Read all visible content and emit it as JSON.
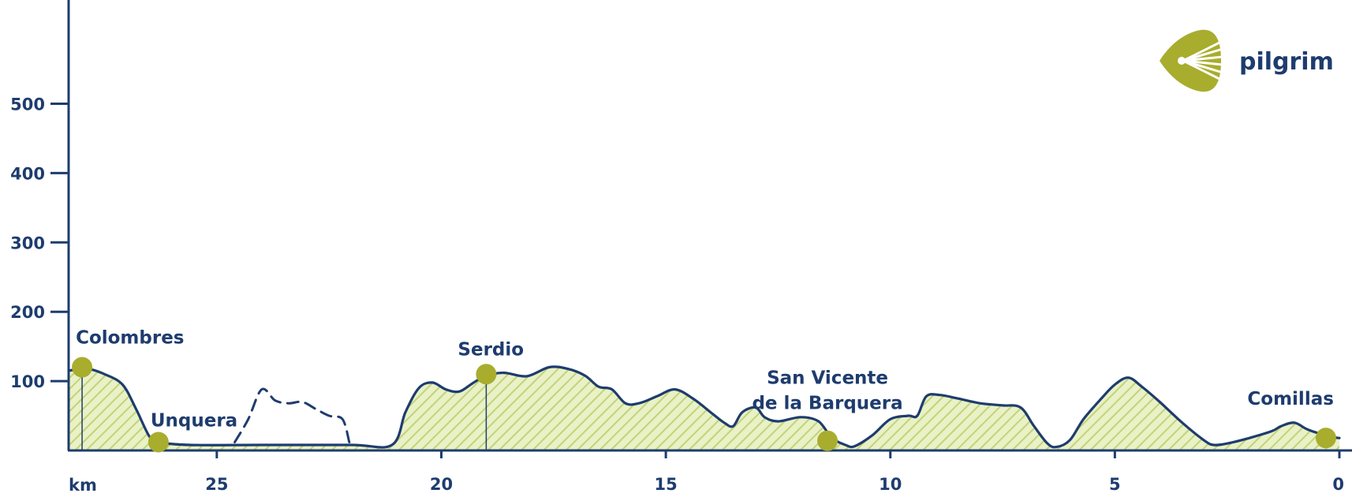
{
  "brand": {
    "name": "pilgrim",
    "accent": "#a8ad2e",
    "primary": "#1e3c6e",
    "fill": "#dbe7a6"
  },
  "chart_data": {
    "type": "area",
    "title": "",
    "xlabel": "km",
    "ylabel": "",
    "x_reversed": true,
    "xlim": [
      0,
      28.3
    ],
    "ylim": [
      0,
      620
    ],
    "x_ticks": [
      25,
      20,
      15,
      10,
      5,
      0
    ],
    "y_ticks": [
      100,
      200,
      300,
      400,
      500
    ],
    "grid": false,
    "series": [
      {
        "kind": "main",
        "style": "solid",
        "points": [
          [
            28.3,
            115
          ],
          [
            27.9,
            118
          ],
          [
            27.5,
            110
          ],
          [
            27.1,
            95
          ],
          [
            26.8,
            60
          ],
          [
            26.5,
            20
          ],
          [
            26.3,
            12
          ],
          [
            25.6,
            8
          ],
          [
            24.0,
            8
          ],
          [
            22.0,
            8
          ],
          [
            21.1,
            8
          ],
          [
            20.8,
            55
          ],
          [
            20.5,
            90
          ],
          [
            20.2,
            98
          ],
          [
            19.9,
            88
          ],
          [
            19.6,
            85
          ],
          [
            19.3,
            97
          ],
          [
            19.0,
            108
          ],
          [
            18.6,
            112
          ],
          [
            18.1,
            107
          ],
          [
            17.6,
            120
          ],
          [
            17.2,
            118
          ],
          [
            16.8,
            108
          ],
          [
            16.5,
            92
          ],
          [
            16.2,
            88
          ],
          [
            15.9,
            68
          ],
          [
            15.6,
            68
          ],
          [
            15.2,
            78
          ],
          [
            14.8,
            88
          ],
          [
            14.4,
            75
          ],
          [
            14.0,
            55
          ],
          [
            13.7,
            40
          ],
          [
            13.5,
            35
          ],
          [
            13.3,
            55
          ],
          [
            13.0,
            62
          ],
          [
            12.8,
            48
          ],
          [
            12.5,
            42
          ],
          [
            12.0,
            48
          ],
          [
            11.6,
            42
          ],
          [
            11.3,
            18
          ],
          [
            11.0,
            8
          ],
          [
            10.8,
            6
          ],
          [
            10.4,
            22
          ],
          [
            10.0,
            45
          ],
          [
            9.6,
            50
          ],
          [
            9.4,
            50
          ],
          [
            9.2,
            78
          ],
          [
            8.9,
            80
          ],
          [
            8.5,
            75
          ],
          [
            8.0,
            68
          ],
          [
            7.5,
            65
          ],
          [
            7.1,
            62
          ],
          [
            6.8,
            35
          ],
          [
            6.5,
            10
          ],
          [
            6.3,
            5
          ],
          [
            6.0,
            15
          ],
          [
            5.7,
            45
          ],
          [
            5.3,
            75
          ],
          [
            5.0,
            95
          ],
          [
            4.7,
            105
          ],
          [
            4.4,
            92
          ],
          [
            4.0,
            70
          ],
          [
            3.5,
            40
          ],
          [
            3.0,
            14
          ],
          [
            2.8,
            8
          ],
          [
            2.5,
            10
          ],
          [
            2.0,
            18
          ],
          [
            1.5,
            28
          ],
          [
            1.3,
            35
          ],
          [
            1.0,
            40
          ],
          [
            0.7,
            30
          ],
          [
            0.2,
            20
          ],
          [
            0,
            18
          ]
        ]
      },
      {
        "kind": "alternative",
        "style": "dashed",
        "points": [
          [
            24.6,
            12
          ],
          [
            24.3,
            45
          ],
          [
            24.0,
            88
          ],
          [
            23.7,
            72
          ],
          [
            23.4,
            68
          ],
          [
            23.1,
            70
          ],
          [
            22.8,
            60
          ],
          [
            22.5,
            50
          ],
          [
            22.2,
            45
          ],
          [
            22.05,
            12
          ]
        ]
      }
    ],
    "towns": [
      {
        "name": "Colombres",
        "x": 28.0,
        "y": 120,
        "drop_line": true
      },
      {
        "name": "Unquera",
        "x": 26.3,
        "y": 12,
        "drop_line": false
      },
      {
        "name": "Serdio",
        "x": 19.0,
        "y": 110,
        "drop_line": true
      },
      {
        "name_lines": [
          "San Vicente",
          "de la Barquera"
        ],
        "x": 11.4,
        "y": 14,
        "drop_line": false
      },
      {
        "name": "Comillas",
        "x": 0.3,
        "y": 18,
        "drop_line": false
      }
    ]
  }
}
